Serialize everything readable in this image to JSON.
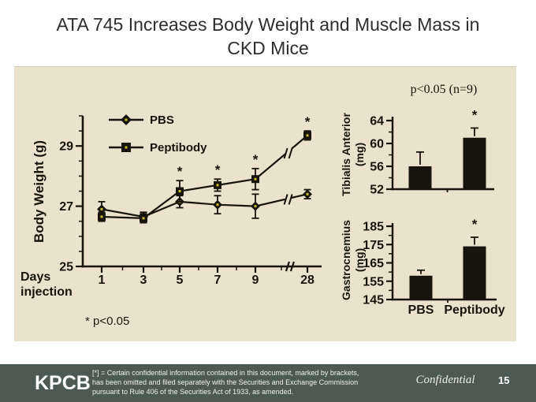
{
  "slide": {
    "title_line1": "ATA 745 Increases Body Weight and Muscle Mass in",
    "title_line2": "CKD Mice",
    "footnote": "* p<0.05"
  },
  "footer": {
    "logo": "KPCB",
    "disclaimer_lines": [
      "[*] = Certain confidential information contained in this document, marked by brackets,",
      "has been omitted and filed separately with the Securities and Exchange Commission",
      "pursuant to Rule 406 of the Securities Act of 1933, as amended."
    ],
    "confidential": "Confidential",
    "page_number": "15"
  },
  "colors": {
    "panel_bg": "#eae2cc",
    "footer_bg": "#4d5a54",
    "ink": "#17140c",
    "title_color": "#2e2e2e",
    "marker_center": "#c9b930"
  },
  "chart_data": [
    {
      "id": "body-weight",
      "type": "line",
      "title": "",
      "xlabel": "Days injection",
      "ylabel": "Body Weight (g)",
      "x": [
        1,
        3,
        5,
        7,
        9,
        28
      ],
      "x_ticks": [
        "1",
        "3",
        "5",
        "7",
        "9",
        "28"
      ],
      "ylim": [
        25,
        30
      ],
      "y_ticks": [
        25,
        27,
        29
      ],
      "axis_break_between": [
        9,
        28
      ],
      "legend_position": "top-left",
      "grid": false,
      "footnote": "* p<0.05",
      "series": [
        {
          "name": "PBS",
          "marker": "diamond",
          "values": [
            26.9,
            26.65,
            27.15,
            27.05,
            27.0,
            27.4
          ],
          "errors": [
            0.25,
            0.15,
            0.2,
            0.3,
            0.4,
            0.15
          ],
          "significant": [
            false,
            false,
            false,
            false,
            false,
            false
          ]
        },
        {
          "name": "Peptibody",
          "marker": "square",
          "values": [
            26.65,
            26.6,
            27.5,
            27.7,
            27.9,
            29.35
          ],
          "errors": [
            0.15,
            0.15,
            0.35,
            0.2,
            0.35,
            0.15
          ],
          "significant": [
            false,
            false,
            true,
            true,
            true,
            true
          ]
        }
      ]
    },
    {
      "id": "tibialis-anterior",
      "type": "bar",
      "title": "p<0.05 (n=9)",
      "ylabel_lines": [
        "Tibialis Anterior",
        "(mg)"
      ],
      "categories": [
        "PBS",
        "Peptibody"
      ],
      "values": [
        56,
        61
      ],
      "errors": [
        2.5,
        1.7
      ],
      "significant": [
        false,
        true
      ],
      "ylim": [
        52,
        64
      ],
      "y_ticks": [
        52,
        56,
        60,
        64
      ],
      "show_x_labels": false
    },
    {
      "id": "gastrocnemius",
      "type": "bar",
      "title": "",
      "ylabel_lines": [
        "Gastrocnemius",
        "(mg)"
      ],
      "categories": [
        "PBS",
        "Peptibody"
      ],
      "values": [
        158,
        174
      ],
      "errors": [
        3,
        5
      ],
      "significant": [
        false,
        true
      ],
      "ylim": [
        145,
        185
      ],
      "y_ticks": [
        145,
        155,
        165,
        175,
        185
      ],
      "show_x_labels": true
    }
  ]
}
